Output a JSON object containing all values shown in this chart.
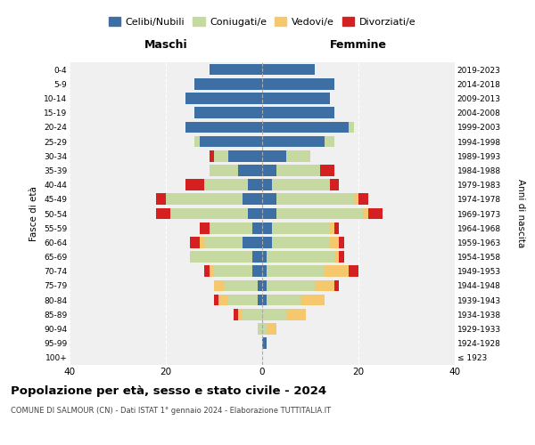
{
  "age_groups": [
    "100+",
    "95-99",
    "90-94",
    "85-89",
    "80-84",
    "75-79",
    "70-74",
    "65-69",
    "60-64",
    "55-59",
    "50-54",
    "45-49",
    "40-44",
    "35-39",
    "30-34",
    "25-29",
    "20-24",
    "15-19",
    "10-14",
    "5-9",
    "0-4"
  ],
  "birth_years": [
    "≤ 1923",
    "1924-1928",
    "1929-1933",
    "1934-1938",
    "1939-1943",
    "1944-1948",
    "1949-1953",
    "1954-1958",
    "1959-1963",
    "1964-1968",
    "1969-1973",
    "1974-1978",
    "1979-1983",
    "1984-1988",
    "1989-1993",
    "1994-1998",
    "1999-2003",
    "2004-2008",
    "2009-2013",
    "2014-2018",
    "2019-2023"
  ],
  "colors": {
    "celibi": "#3d6fa5",
    "coniugati": "#c5d9a0",
    "vedovi": "#f5c86e",
    "divorziati": "#d42020"
  },
  "maschi": {
    "celibi": [
      0,
      0,
      0,
      0,
      1,
      1,
      2,
      2,
      4,
      2,
      3,
      4,
      3,
      5,
      7,
      13,
      16,
      14,
      16,
      14,
      11
    ],
    "coniugati": [
      0,
      0,
      1,
      4,
      6,
      7,
      8,
      13,
      8,
      9,
      16,
      16,
      9,
      6,
      3,
      1,
      0,
      0,
      0,
      0,
      0
    ],
    "vedovi": [
      0,
      0,
      0,
      1,
      2,
      2,
      1,
      0,
      1,
      0,
      0,
      0,
      0,
      0,
      0,
      0,
      0,
      0,
      0,
      0,
      0
    ],
    "divorziati": [
      0,
      0,
      0,
      1,
      1,
      0,
      1,
      0,
      2,
      2,
      3,
      2,
      4,
      0,
      1,
      0,
      0,
      0,
      0,
      0,
      0
    ]
  },
  "femmine": {
    "nubili": [
      0,
      1,
      0,
      0,
      1,
      1,
      1,
      1,
      2,
      2,
      3,
      3,
      2,
      3,
      5,
      13,
      18,
      15,
      14,
      15,
      11
    ],
    "coniugate": [
      0,
      0,
      1,
      5,
      7,
      10,
      12,
      14,
      12,
      12,
      18,
      16,
      12,
      9,
      5,
      2,
      1,
      0,
      0,
      0,
      0
    ],
    "vedove": [
      0,
      0,
      2,
      4,
      5,
      4,
      5,
      1,
      2,
      1,
      1,
      1,
      0,
      0,
      0,
      0,
      0,
      0,
      0,
      0,
      0
    ],
    "divorziate": [
      0,
      0,
      0,
      0,
      0,
      1,
      2,
      1,
      1,
      1,
      3,
      2,
      2,
      3,
      0,
      0,
      0,
      0,
      0,
      0,
      0
    ]
  },
  "title": "Popolazione per età, sesso e stato civile - 2024",
  "subtitle": "COMUNE DI SALMOUR (CN) - Dati ISTAT 1° gennaio 2024 - Elaborazione TUTTITALIA.IT",
  "ylabel_left": "Fasce di età",
  "ylabel_right": "Anni di nascita",
  "xlabel_left": "Maschi",
  "xlabel_right": "Femmine",
  "xlim": 40,
  "legend_labels": [
    "Celibi/Nubili",
    "Coniugati/e",
    "Vedovi/e",
    "Divorziati/e"
  ],
  "bg_color": "#f0f0f0"
}
